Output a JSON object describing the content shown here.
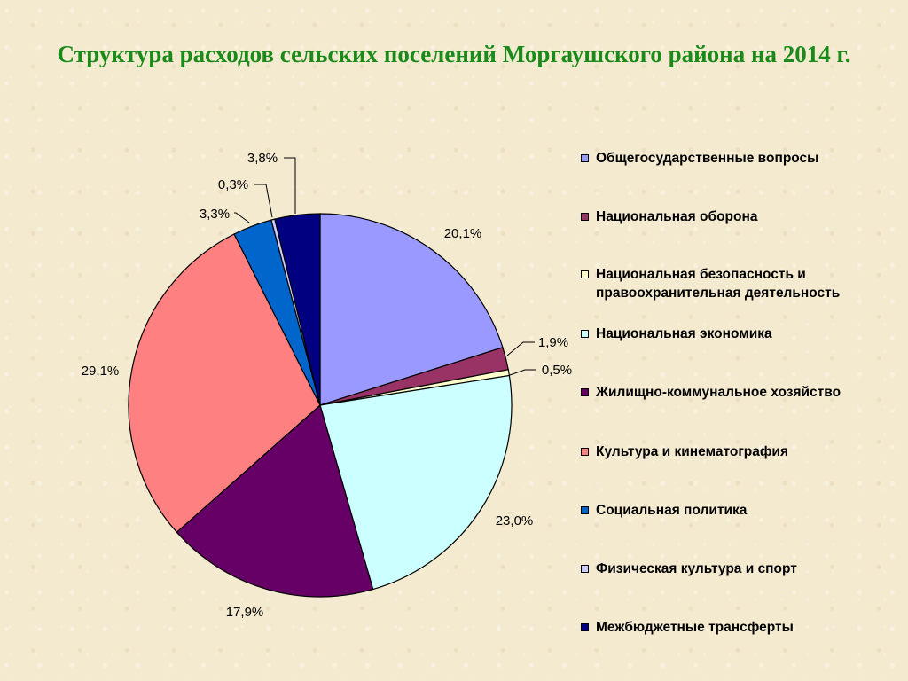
{
  "chart_data": {
    "type": "pie",
    "title": "Структура расходов сельских поселений Моргаушского района на 2014 г.",
    "slices": [
      {
        "name": "Общегосударственные вопросы",
        "value": 20.1,
        "label": "20,1%",
        "color": "#9999ff"
      },
      {
        "name": "Национальная оборона",
        "value": 1.9,
        "label": "1,9%",
        "color": "#993366"
      },
      {
        "name": "Национальная безопасность и правоохранительная деятельность",
        "value": 0.5,
        "label": "0,5%",
        "color": "#ffffcc"
      },
      {
        "name": "Национальная экономика",
        "value": 23.0,
        "label": "23,0%",
        "color": "#ccffff"
      },
      {
        "name": "Жилищно-коммунальное хозяйство",
        "value": 17.9,
        "label": "17,9%",
        "color": "#660066"
      },
      {
        "name": "Культура и кинематография",
        "value": 29.1,
        "label": "29,1%",
        "color": "#ff8080"
      },
      {
        "name": "Социальная политика",
        "value": 3.3,
        "label": "3,3%",
        "color": "#0066cc"
      },
      {
        "name": "Физическая культура и спорт",
        "value": 0.3,
        "label": "0,3%",
        "color": "#ccccff"
      },
      {
        "name": "Межбюджетные трансферты",
        "value": 3.8,
        "label": "3,8%",
        "color": "#000080"
      }
    ],
    "legend_position": "right",
    "start_angle": "12 o'clock, clockwise"
  }
}
